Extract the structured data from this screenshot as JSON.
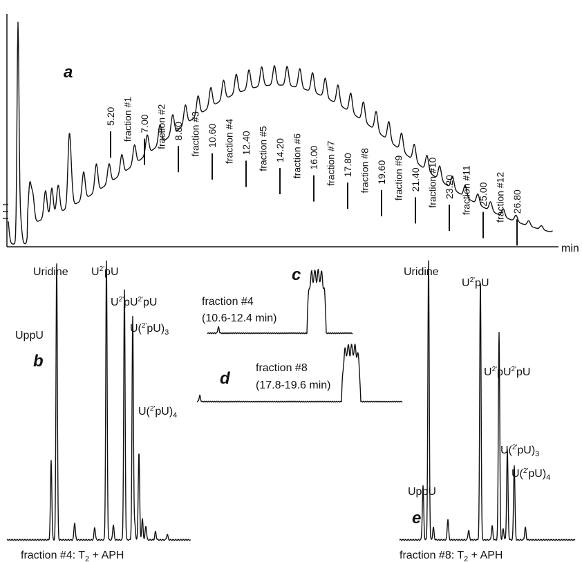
{
  "chart_data": [
    {
      "type": "line",
      "panel": "a",
      "xlabel": "min",
      "markers": [
        {
          "time": "5.20"
        },
        {
          "fraction": "fraction #1"
        },
        {
          "time": "7.00"
        },
        {
          "fraction": "fraction #2"
        },
        {
          "time": "8.80"
        },
        {
          "fraction": "fraction #3"
        },
        {
          "time": "10.60"
        },
        {
          "fraction": "fraction #4"
        },
        {
          "time": "12.40"
        },
        {
          "fraction": "fraction #5"
        },
        {
          "time": "14.20"
        },
        {
          "fraction": "fraction #6"
        },
        {
          "time": "16.00"
        },
        {
          "fraction": "fraction #7"
        },
        {
          "time": "17.80"
        },
        {
          "fraction": "fraction #8"
        },
        {
          "time": "19.60"
        },
        {
          "fraction": "fraction #9"
        },
        {
          "time": "21.40"
        },
        {
          "fraction": "fraction #10"
        },
        {
          "time": "23.20"
        },
        {
          "fraction": "fraction #11"
        },
        {
          "time": "25.00"
        },
        {
          "fraction": "fraction #12"
        },
        {
          "time": "26.80"
        }
      ]
    },
    {
      "type": "line",
      "panel": "b",
      "caption": {
        "pre": "fraction #4: T",
        "sub": "2",
        "post": " + APH"
      },
      "peaks": {
        "uppu": "UppU",
        "uridine": "Uridine",
        "u2pu": {
          "a": "U",
          "sup": "2'",
          "b": "pU"
        },
        "u2pu2pu": {
          "a": "U",
          "sup1": "2'",
          "b": "pU",
          "sup2": "2'",
          "c": "pU"
        },
        "u2pu3": {
          "a": "U(",
          "sup": "2'",
          "b": "pU)",
          "sub": "3"
        },
        "u2pu4": {
          "a": "U(",
          "sup": "2'",
          "b": "pU)",
          "sub": "4"
        }
      }
    },
    {
      "type": "line",
      "panel": "c",
      "label": "fraction #4",
      "range": "(10.6-12.4 min)"
    },
    {
      "type": "line",
      "panel": "d",
      "label": "fraction #8",
      "range": "(17.8-19.6 min)"
    },
    {
      "type": "line",
      "panel": "e",
      "caption": {
        "pre": "fraction #8: T",
        "sub": "2",
        "post": " + APH"
      },
      "peaks": {
        "uppu": "UppU",
        "uridine": "Uridine",
        "u2pu": {
          "a": "U",
          "sup": "2'",
          "b": "pU"
        },
        "u2pu2pu": {
          "a": "U",
          "sup1": "2'",
          "b": "pU",
          "sup2": "2'",
          "c": "pU"
        },
        "u2pu3": {
          "a": "U(",
          "sup": "2'",
          "b": "pU)",
          "sub": "3"
        },
        "u2pu4": {
          "a": "U(",
          "sup": "2'",
          "b": "pU)",
          "sub": "4"
        }
      }
    }
  ]
}
